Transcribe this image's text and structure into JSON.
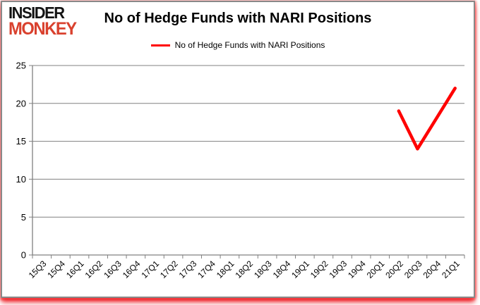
{
  "brand": {
    "line1": "INSIDER",
    "line2": "MONKEY"
  },
  "title": "No of Hedge Funds with NARI Positions",
  "legend": {
    "label": "No of Hedge Funds with NARI Positions"
  },
  "colors": {
    "series": "#ff0000",
    "grid": "#808080",
    "axis": "#808080",
    "tick": "#808080",
    "text": "#000000",
    "frame_border": "#898989",
    "logo_black": "#131313",
    "logo_red": "#d9412e",
    "bottom_glow": "#ed1c24",
    "background": "#ffffff"
  },
  "chart_data": {
    "type": "line",
    "title": "No of Hedge Funds with NARI Positions",
    "categories": [
      "15Q3",
      "15Q4",
      "16Q1",
      "16Q2",
      "16Q3",
      "16Q4",
      "17Q1",
      "17Q2",
      "17Q3",
      "17Q4",
      "18Q1",
      "18Q2",
      "18Q3",
      "18Q4",
      "19Q1",
      "19Q2",
      "19Q3",
      "19Q4",
      "20Q1",
      "20Q2",
      "20Q3",
      "20Q4",
      "21Q1"
    ],
    "series": [
      {
        "name": "No of Hedge Funds with NARI Positions",
        "color": "#ff0000",
        "values": [
          null,
          null,
          null,
          null,
          null,
          null,
          null,
          null,
          null,
          null,
          null,
          null,
          null,
          null,
          null,
          null,
          null,
          null,
          null,
          19,
          14,
          18,
          22
        ]
      }
    ],
    "xlabel": "",
    "ylabel": "",
    "ylim": [
      0,
      25
    ],
    "yticks": [
      0,
      5,
      10,
      15,
      20,
      25
    ],
    "grid": true,
    "legend_position": "top-center",
    "x_tick_label_rotation": -45
  }
}
